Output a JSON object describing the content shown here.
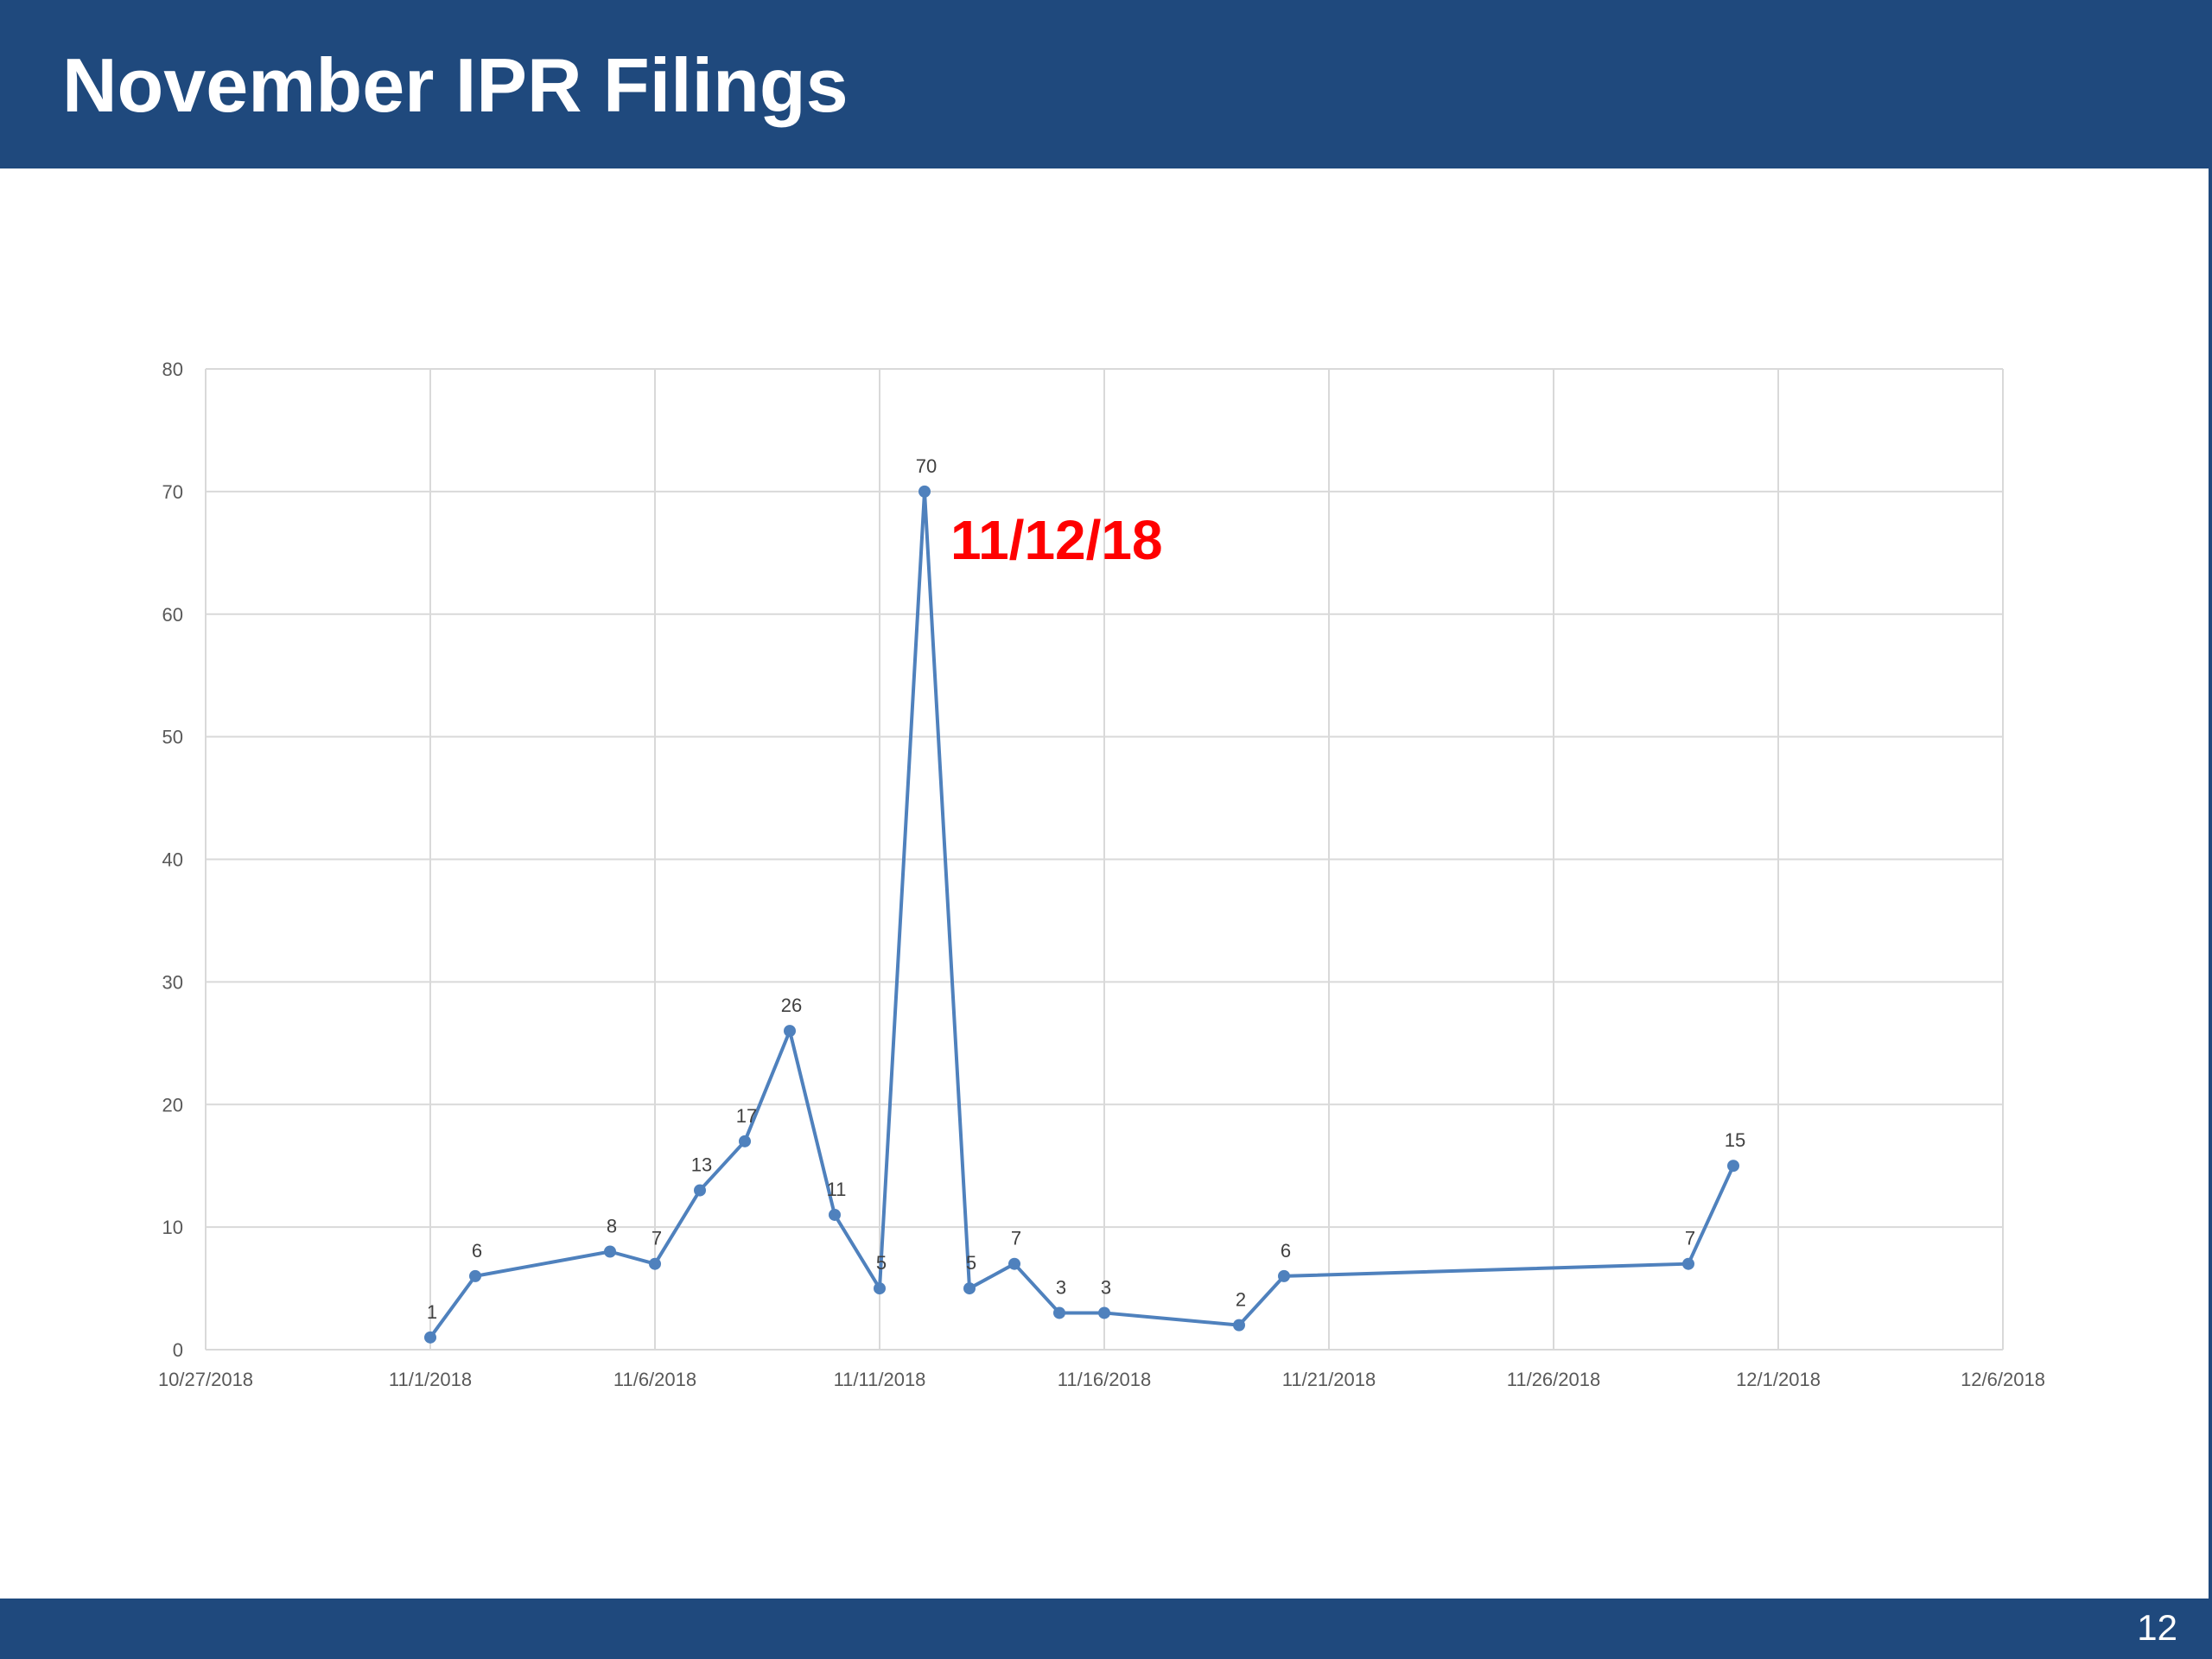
{
  "slide": {
    "title": "November IPR Filings",
    "page_number": "12"
  },
  "colors": {
    "header_bar": "#1f497d",
    "series_line": "#4f81bd",
    "gridline": "#d9d9d9",
    "annotation": "#ff0000"
  },
  "chart_data": {
    "type": "line",
    "title": "",
    "xlabel": "",
    "ylabel": "",
    "x_type": "date",
    "xlim": [
      "2018-10-27",
      "2018-12-06"
    ],
    "ylim": [
      0,
      80
    ],
    "grid": true,
    "legend": "none",
    "x_ticks": [
      "2018-10-27",
      "2018-11-01",
      "2018-11-06",
      "2018-11-11",
      "2018-11-16",
      "2018-11-21",
      "2018-11-26",
      "2018-12-01",
      "2018-12-06"
    ],
    "x_tick_labels": [
      "10/27/2018",
      "11/1/2018",
      "11/6/2018",
      "11/11/2018",
      "11/16/2018",
      "11/21/2018",
      "11/26/2018",
      "12/1/2018",
      "12/6/2018"
    ],
    "y_ticks": [
      0,
      10,
      20,
      30,
      40,
      50,
      60,
      70,
      80
    ],
    "y_tick_labels": [
      "0",
      "10",
      "20",
      "30",
      "40",
      "50",
      "60",
      "70",
      "80"
    ],
    "series": [
      {
        "x": [
          "2018-11-01",
          "2018-11-02",
          "2018-11-05",
          "2018-11-06",
          "2018-11-07",
          "2018-11-08",
          "2018-11-09",
          "2018-11-10",
          "2018-11-11",
          "2018-11-12",
          "2018-11-13",
          "2018-11-14",
          "2018-11-15",
          "2018-11-16",
          "2018-11-19",
          "2018-11-20",
          "2018-11-29",
          "2018-11-30"
        ],
        "values": [
          1,
          6,
          8,
          7,
          13,
          17,
          26,
          11,
          5,
          70,
          5,
          7,
          3,
          3,
          2,
          6,
          7,
          15
        ],
        "data_labels": [
          "1",
          "6",
          "8",
          "7",
          "13",
          "17",
          "26",
          "11",
          "5",
          "70",
          "5",
          "7",
          "3",
          "3",
          "2",
          "6",
          "7",
          "15"
        ]
      }
    ],
    "annotations": [
      {
        "text": "11/12/18",
        "x": "2018-11-12",
        "y": 70
      }
    ]
  }
}
